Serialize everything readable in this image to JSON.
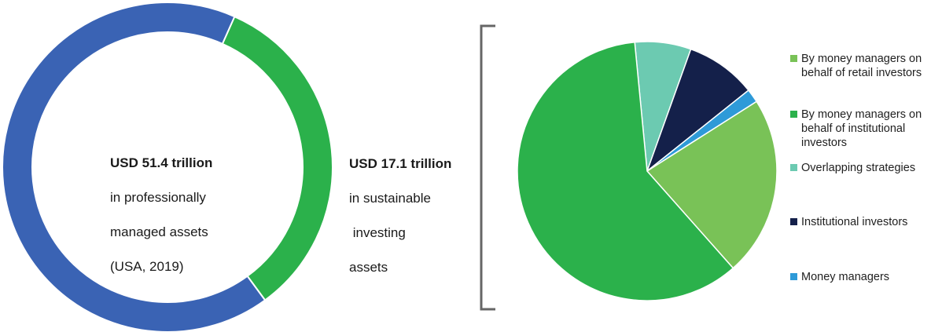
{
  "chart_data": [
    {
      "type": "pie",
      "variant": "donut",
      "label_lines": [
        "USD 51.4 trillion",
        "in professionally",
        "managed assets",
        "(USA, 2019)"
      ],
      "slices": [
        {
          "value": 34.3,
          "color": "#3a63b4"
        },
        {
          "value": 17.1,
          "color": "#2bb14b"
        }
      ],
      "total": 51.4
    },
    {
      "type": "pie",
      "bracket_label_lines": [
        "USD 17.1 trillion",
        "in sustainable",
        " investing",
        "assets"
      ],
      "slices": [
        {
          "name": "By money managers on\nbehalf of retail investors",
          "value": 22.5,
          "color": "#79c257"
        },
        {
          "name": "By money managers on\nbehalf of institutional\ninvestors",
          "value": 60.0,
          "color": "#2bb14b"
        },
        {
          "name": "Overlapping strategies",
          "value": 7.0,
          "color": "#6ccab1"
        },
        {
          "name": "Institutional investors",
          "value": 8.8,
          "color": "#14204a"
        },
        {
          "name": "Money managers",
          "value": 1.7,
          "color": "#2e9ad8"
        }
      ],
      "legend_position": "right"
    }
  ]
}
